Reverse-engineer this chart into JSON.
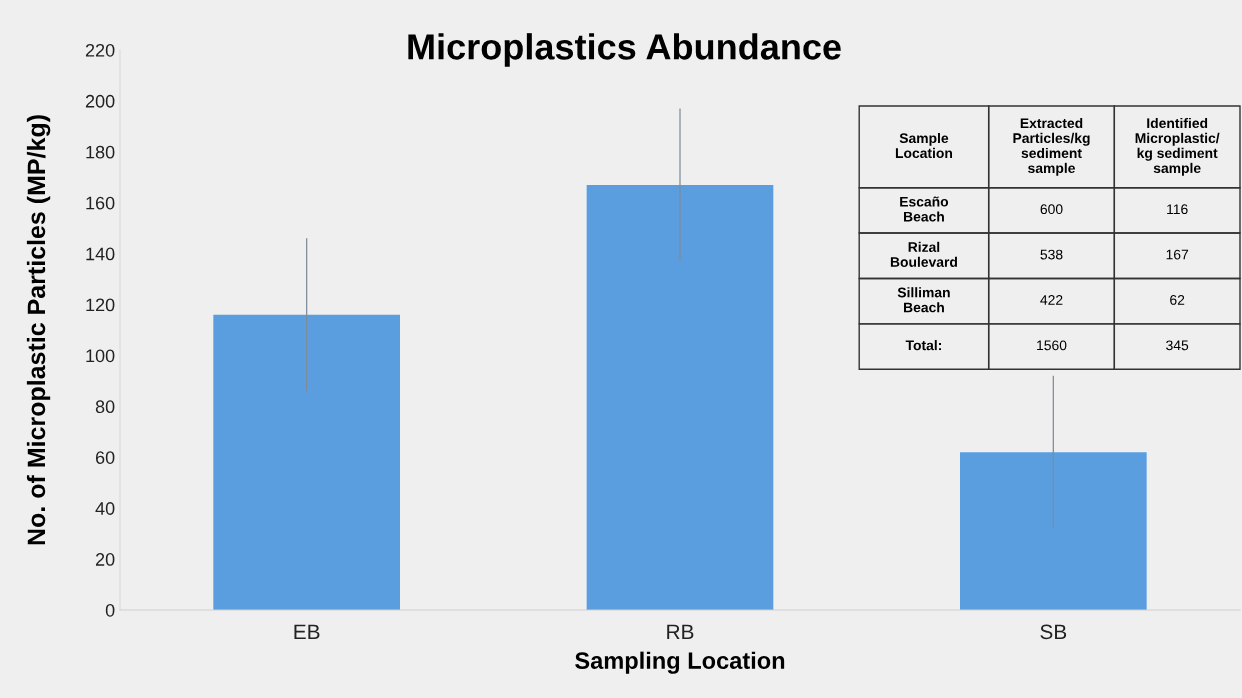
{
  "chart_data": {
    "type": "bar",
    "title": "Microplastics Abundance",
    "xlabel": "Sampling Location",
    "ylabel": "No. of Microplastic Particles (MP/kg)",
    "categories": [
      "EB",
      "RB",
      "SB"
    ],
    "values": [
      116,
      167,
      62
    ],
    "errors": [
      30,
      30,
      30
    ],
    "color": "#5a9edf",
    "ylim": [
      0,
      220
    ],
    "yticks": [
      0,
      20,
      40,
      60,
      80,
      100,
      120,
      140,
      160,
      180,
      200,
      220
    ],
    "annotations": [
      "Sample\nLocation",
      "Extracted\nParticles/kg\nsediment\nsample",
      "Identified\nMicroplastic/\nkg sediment\nsample",
      "Escaño\nBeach",
      "600",
      "116",
      "Rizal\nBoulevard",
      "538",
      "167",
      "Silliman\nBeach",
      "422",
      "62",
      "Total:",
      "1560",
      "345"
    ]
  }
}
